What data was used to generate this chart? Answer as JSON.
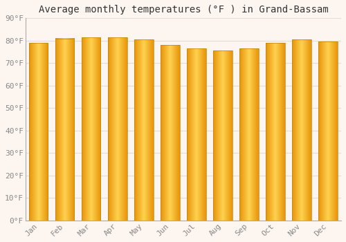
{
  "months": [
    "Jan",
    "Feb",
    "Mar",
    "Apr",
    "May",
    "Jun",
    "Jul",
    "Aug",
    "Sep",
    "Oct",
    "Nov",
    "Dec"
  ],
  "values": [
    79,
    81,
    81.5,
    81.5,
    80.5,
    78,
    76.5,
    75.5,
    76.5,
    79,
    80.5,
    79.5
  ],
  "title": "Average monthly temperatures (°F ) in Grand-Bassam",
  "ylim": [
    0,
    90
  ],
  "yticks": [
    0,
    10,
    20,
    30,
    40,
    50,
    60,
    70,
    80,
    90
  ],
  "ytick_labels": [
    "0°F",
    "10°F",
    "20°F",
    "30°F",
    "40°F",
    "50°F",
    "60°F",
    "70°F",
    "80°F",
    "90°F"
  ],
  "bar_color_edge": "#E8940A",
  "bar_color_center": "#FFD966",
  "bar_outline_color": "#B8860B",
  "background_color": "#fdf6f0",
  "grid_color": "#e0ddd8",
  "title_fontsize": 10,
  "tick_fontsize": 8,
  "tick_color": "#888888",
  "font_family": "monospace",
  "bar_width": 0.72
}
